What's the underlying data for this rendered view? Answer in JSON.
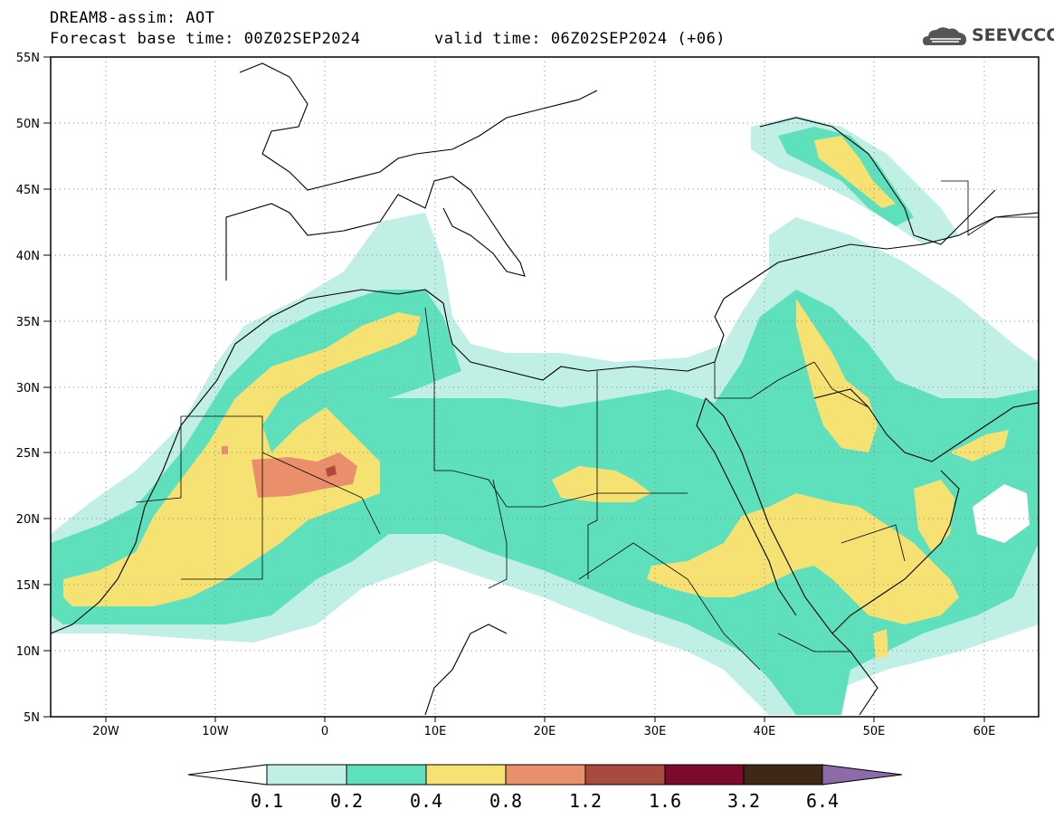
{
  "header": {
    "title": "DREAM8-assim: AOT",
    "base_time": "Forecast base time: 00Z02SEP2024",
    "valid_time": "valid time: 06Z02SEP2024 (+06)"
  },
  "logo": {
    "text": "SEEVCCC"
  },
  "map": {
    "lon_range": [
      -25,
      65
    ],
    "lat_range": [
      5,
      55
    ],
    "lat_ticks": [
      "55N",
      "50N",
      "45N",
      "40N",
      "35N",
      "30N",
      "25N",
      "20N",
      "15N",
      "10N",
      "5N"
    ],
    "lon_ticks": [
      "20W",
      "10W",
      "0",
      "10E",
      "20E",
      "30E",
      "40E",
      "50E",
      "60E"
    ],
    "grid": true
  },
  "colorbar": {
    "labels": [
      "0.1",
      "0.2",
      "0.4",
      "0.8",
      "1.2",
      "1.6",
      "3.2",
      "6.4"
    ],
    "colors": [
      "#ffffff",
      "#c0efe6",
      "#5fe0bd",
      "#f6e273",
      "#e98f6c",
      "#a94a3f",
      "#7d0a2c",
      "#3f2816",
      "#8d6aa8"
    ]
  },
  "aot_colors": {
    "light": "#c0efe6",
    "green": "#5fe0bd",
    "yellow": "#f6e273",
    "orange": "#e98f6c",
    "red": "#b04a3c"
  }
}
